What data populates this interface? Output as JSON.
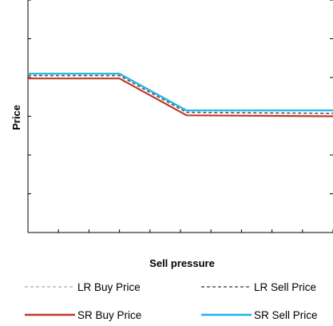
{
  "chart_data": {
    "type": "line",
    "title": "",
    "xlabel": "Sell pressure",
    "ylabel": "Price",
    "x": [
      0,
      3,
      5.2,
      10
    ],
    "xlim": [
      0,
      10
    ],
    "ylim": [
      0,
      12
    ],
    "grid": false,
    "legend_position": "bottom",
    "series": [
      {
        "name": "LR Buy Price",
        "values": [
          8.1,
          8.1,
          6.2,
          6.15
        ],
        "color": "#b7b7b7",
        "style": "dashed"
      },
      {
        "name": "LR Sell Price",
        "values": [
          8.1,
          8.1,
          6.2,
          6.15
        ],
        "color": "#595959",
        "style": "dashed"
      },
      {
        "name": "SR Buy Price",
        "values": [
          7.95,
          7.95,
          6.05,
          6.0
        ],
        "color": "#c0392b",
        "style": "solid"
      },
      {
        "name": "SR Sell Price",
        "values": [
          8.2,
          8.2,
          6.3,
          6.3
        ],
        "color": "#1ab2e8",
        "style": "solid"
      }
    ]
  }
}
